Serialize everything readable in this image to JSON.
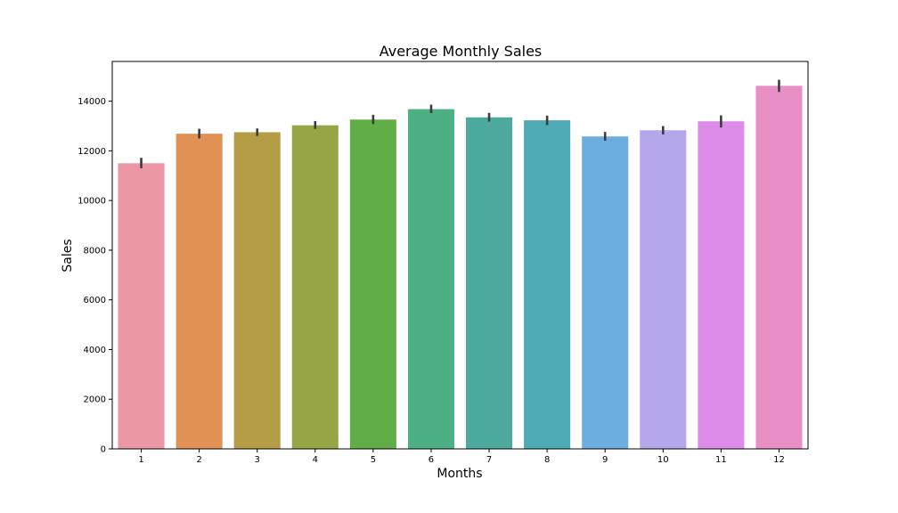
{
  "chart_data": {
    "type": "bar",
    "title": "Average Monthly Sales",
    "xlabel": "Months",
    "ylabel": "Sales",
    "categories": [
      "1",
      "2",
      "3",
      "4",
      "5",
      "6",
      "7",
      "8",
      "9",
      "10",
      "11",
      "12"
    ],
    "values": [
      11500,
      12690,
      12750,
      13030,
      13260,
      13680,
      13350,
      13230,
      12580,
      12830,
      13190,
      14620
    ],
    "error_low": [
      11300,
      12500,
      12600,
      12880,
      13080,
      13520,
      13180,
      13040,
      12410,
      12660,
      12940,
      14370
    ],
    "error_high": [
      11720,
      12890,
      12900,
      13200,
      13450,
      13860,
      13530,
      13420,
      12760,
      13000,
      13430,
      14860
    ],
    "colors": [
      "#ea96a3",
      "#e19153",
      "#b59c47",
      "#97a546",
      "#62ae46",
      "#4daf84",
      "#4cab9e",
      "#4eaab5",
      "#6caee0",
      "#b6a6ec",
      "#dd8ce9",
      "#e88fc8"
    ],
    "ylim": [
      0,
      15600
    ],
    "yticks": [
      0,
      2000,
      4000,
      6000,
      8000,
      10000,
      12000,
      14000
    ],
    "grid": false,
    "legend": "none"
  }
}
